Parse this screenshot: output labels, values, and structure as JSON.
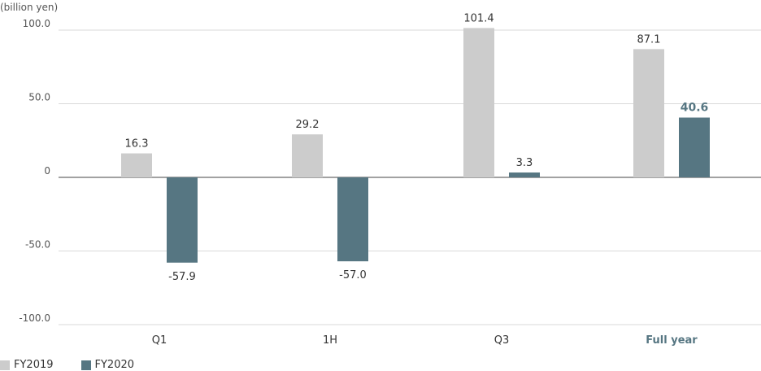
{
  "chart_data": {
    "type": "bar",
    "unit_label": "(billion yen)",
    "categories": [
      "Q1",
      "1H",
      "Q3",
      "Full year"
    ],
    "highlight_category": "Full year",
    "y_ticks": [
      "100.0",
      "50.0",
      "0",
      "-50.0",
      "-100.0"
    ],
    "ylim": [
      -100,
      100
    ],
    "grid": true,
    "legend_position": "bottom-left",
    "series": [
      {
        "name": "FY2019",
        "color": "#cccccc",
        "values": [
          16.3,
          29.2,
          101.4,
          87.1
        ],
        "labels": [
          "16.3",
          "29.2",
          "101.4",
          "87.1"
        ]
      },
      {
        "name": "FY2020",
        "color": "#567682",
        "values": [
          -57.9,
          -57.0,
          3.3,
          40.6
        ],
        "labels": [
          "-57.9",
          "-57.0",
          "3.3",
          "40.6"
        ]
      }
    ]
  }
}
